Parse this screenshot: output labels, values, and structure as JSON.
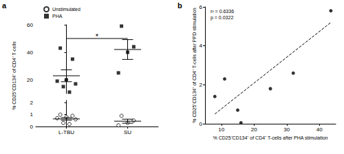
{
  "chart_data": [
    {
      "type": "dot",
      "panel": "a",
      "y_label": "% CD25⁺CD134⁺ of CD4⁺ T-cells",
      "categories": [
        "L-TBU",
        "SU"
      ],
      "ylim": [
        [
          0,
          2.2
        ],
        [
          10,
          60
        ]
      ],
      "yticks": [
        [
          0,
          1,
          2
        ],
        [
          20,
          40,
          60
        ]
      ],
      "legend": "upper left",
      "series": [
        {
          "name": "Unstimulated",
          "color": "#000000",
          "marker": "circle_open",
          "values": [
            [
              1.0,
              0.9,
              0.8,
              0.7,
              0.6,
              0.3,
              0.2
            ],
            [
              0.9,
              0.5,
              0.3,
              0.1
            ]
          ],
          "mean": [
            0.64,
            0.45
          ],
          "sem": [
            0.11,
            0.17
          ]
        },
        {
          "name": "PHA",
          "color": "#000000",
          "marker": "square",
          "values": [
            [
              43,
              35,
              20,
              19,
              17,
              15,
              11
            ],
            [
              59,
              44,
              40,
              25
            ]
          ],
          "mean": [
            22.9,
            42.0
          ],
          "sem": [
            4.3,
            7.2
          ]
        }
      ],
      "annotations": [
        {
          "text": "*",
          "between": [
            "L-TBU",
            "SU"
          ],
          "y": 50
        }
      ]
    },
    {
      "type": "scatter",
      "panel": "b",
      "x_label": "% CD25⁺CD134⁺ of CD4⁺ T-cells after PHA stimulation",
      "y_label": "% CD25⁺CD134⁺ of CD4⁺ T-cells after PPD stimulation",
      "xlim": [
        5,
        45
      ],
      "xticks": [
        10,
        20,
        30,
        40
      ],
      "ylim": [
        0,
        6
      ],
      "yticks": [
        0,
        2,
        4,
        6
      ],
      "series": [
        {
          "color": "#000000",
          "marker": "circle",
          "x": [
            8,
            11,
            15,
            16,
            25,
            32,
            43.5
          ],
          "values": [
            1.4,
            2.3,
            0.7,
            0.05,
            1.8,
            2.6,
            5.8
          ]
        }
      ],
      "fit": {
        "x": [
          8,
          43.5
        ],
        "values": [
          0.5,
          5.2
        ],
        "line_style": "dashed",
        "color": "#000000"
      },
      "annotations": [
        {
          "text": "r² = 0.6336"
        },
        {
          "text": "p = 0.0322"
        }
      ]
    }
  ]
}
